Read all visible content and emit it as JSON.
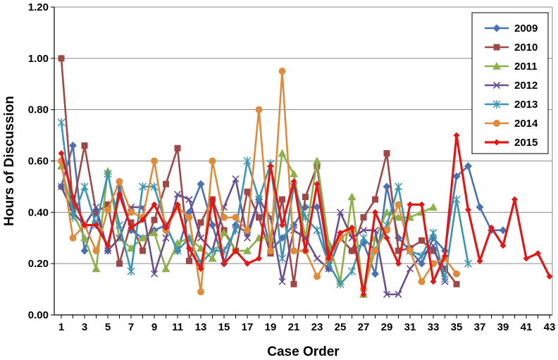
{
  "chart_data": {
    "type": "line",
    "title": "",
    "xlabel": "Case Order",
    "ylabel": "Hours of Discussion",
    "xlim": [
      1,
      43
    ],
    "ylim": [
      0,
      1.2
    ],
    "y_ticks": [
      "0.00",
      "0.20",
      "0.40",
      "0.60",
      "0.80",
      "1.00",
      "1.20"
    ],
    "x_ticks": [
      "1",
      "3",
      "5",
      "7",
      "9",
      "11",
      "13",
      "15",
      "17",
      "19",
      "21",
      "23",
      "25",
      "27",
      "29",
      "31",
      "33",
      "35",
      "37",
      "39",
      "41",
      "43"
    ],
    "grid": "horizontal",
    "legend_position": "top-right",
    "series": [
      {
        "name": "2009",
        "color": "#4a72b0",
        "marker": "diamond",
        "values": [
          0.5,
          0.66,
          0.25,
          0.4,
          0.25,
          0.5,
          0.33,
          0.3,
          0.33,
          0.35,
          0.25,
          0.4,
          0.51,
          0.35,
          0.2,
          0.35,
          0.32,
          0.45,
          0.25,
          0.3,
          0.35,
          0.42,
          0.42,
          0.18,
          0.3,
          0.25,
          0.28,
          0.16,
          0.5,
          0.3,
          0.25,
          0.2,
          0.3,
          0.25,
          0.54,
          0.58,
          0.42,
          0.33,
          0.33
        ]
      },
      {
        "name": "2010",
        "color": "#a04848",
        "marker": "square",
        "values": [
          1.0,
          0.42,
          0.66,
          0.4,
          0.43,
          0.2,
          0.36,
          0.25,
          0.37,
          0.51,
          0.65,
          0.21,
          0.36,
          0.45,
          0.33,
          0.25,
          0.48,
          0.38,
          0.24,
          0.45,
          0.12,
          0.46,
          0.58,
          0.25,
          0.3,
          0.25,
          0.38,
          0.45,
          0.63,
          0.25,
          0.26,
          0.29,
          0.25,
          0.18,
          0.12
        ]
      },
      {
        "name": "2011",
        "color": "#8cb04a",
        "marker": "triangle",
        "values": [
          0.58,
          0.4,
          0.3,
          0.18,
          0.56,
          0.3,
          0.26,
          0.3,
          0.32,
          0.18,
          0.28,
          0.3,
          0.26,
          0.22,
          0.32,
          0.25,
          0.25,
          0.3,
          0.3,
          0.63,
          0.55,
          0.3,
          0.6,
          0.28,
          0.13,
          0.46,
          0.08,
          0.3,
          0.4,
          0.38,
          0.38,
          0.4,
          0.42
        ]
      },
      {
        "name": "2012",
        "color": "#6a4f90",
        "marker": "x",
        "values": [
          0.5,
          0.4,
          0.35,
          0.42,
          0.25,
          0.3,
          0.42,
          0.42,
          0.16,
          0.3,
          0.47,
          0.45,
          0.3,
          0.25,
          0.42,
          0.53,
          0.3,
          0.45,
          0.38,
          0.13,
          0.33,
          0.3,
          0.22,
          0.18,
          0.4,
          0.3,
          0.33,
          0.33,
          0.08,
          0.08,
          0.18,
          0.23,
          0.27,
          0.13
        ]
      },
      {
        "name": "2013",
        "color": "#3c96b0",
        "marker": "asterisk",
        "values": [
          0.75,
          0.38,
          0.5,
          0.35,
          0.55,
          0.35,
          0.17,
          0.5,
          0.5,
          0.35,
          0.25,
          0.3,
          0.2,
          0.25,
          0.25,
          0.33,
          0.6,
          0.45,
          0.59,
          0.22,
          0.5,
          0.38,
          0.33,
          0.2,
          0.12,
          0.17,
          0.3,
          0.25,
          0.35,
          0.5,
          0.25,
          0.23,
          0.32,
          0.14,
          0.45,
          0.2
        ]
      },
      {
        "name": "2014",
        "color": "#e08a3c",
        "marker": "circle",
        "values": [
          0.6,
          0.3,
          0.35,
          0.25,
          0.41,
          0.52,
          0.4,
          0.38,
          0.6,
          0.33,
          0.42,
          0.38,
          0.09,
          0.6,
          0.38,
          0.38,
          0.33,
          0.8,
          0.25,
          0.95,
          0.25,
          0.25,
          0.15,
          0.22,
          0.3,
          0.33,
          0.1,
          0.25,
          0.33,
          0.43,
          0.25,
          0.13,
          0.2,
          0.22,
          0.16
        ]
      },
      {
        "name": "2015",
        "color": "#e01818",
        "marker": "diamond-small",
        "values": [
          0.63,
          0.46,
          0.35,
          0.35,
          0.27,
          0.47,
          0.34,
          0.37,
          0.43,
          0.34,
          0.43,
          0.26,
          0.18,
          0.45,
          0.2,
          0.25,
          0.2,
          0.22,
          0.58,
          0.35,
          0.52,
          0.25,
          0.51,
          0.22,
          0.32,
          0.34,
          0.08,
          0.4,
          0.3,
          0.2,
          0.43,
          0.43,
          0.13,
          0.23,
          0.7,
          0.41,
          0.21,
          0.34,
          0.27,
          0.45,
          0.22,
          0.24,
          0.15
        ]
      }
    ]
  }
}
